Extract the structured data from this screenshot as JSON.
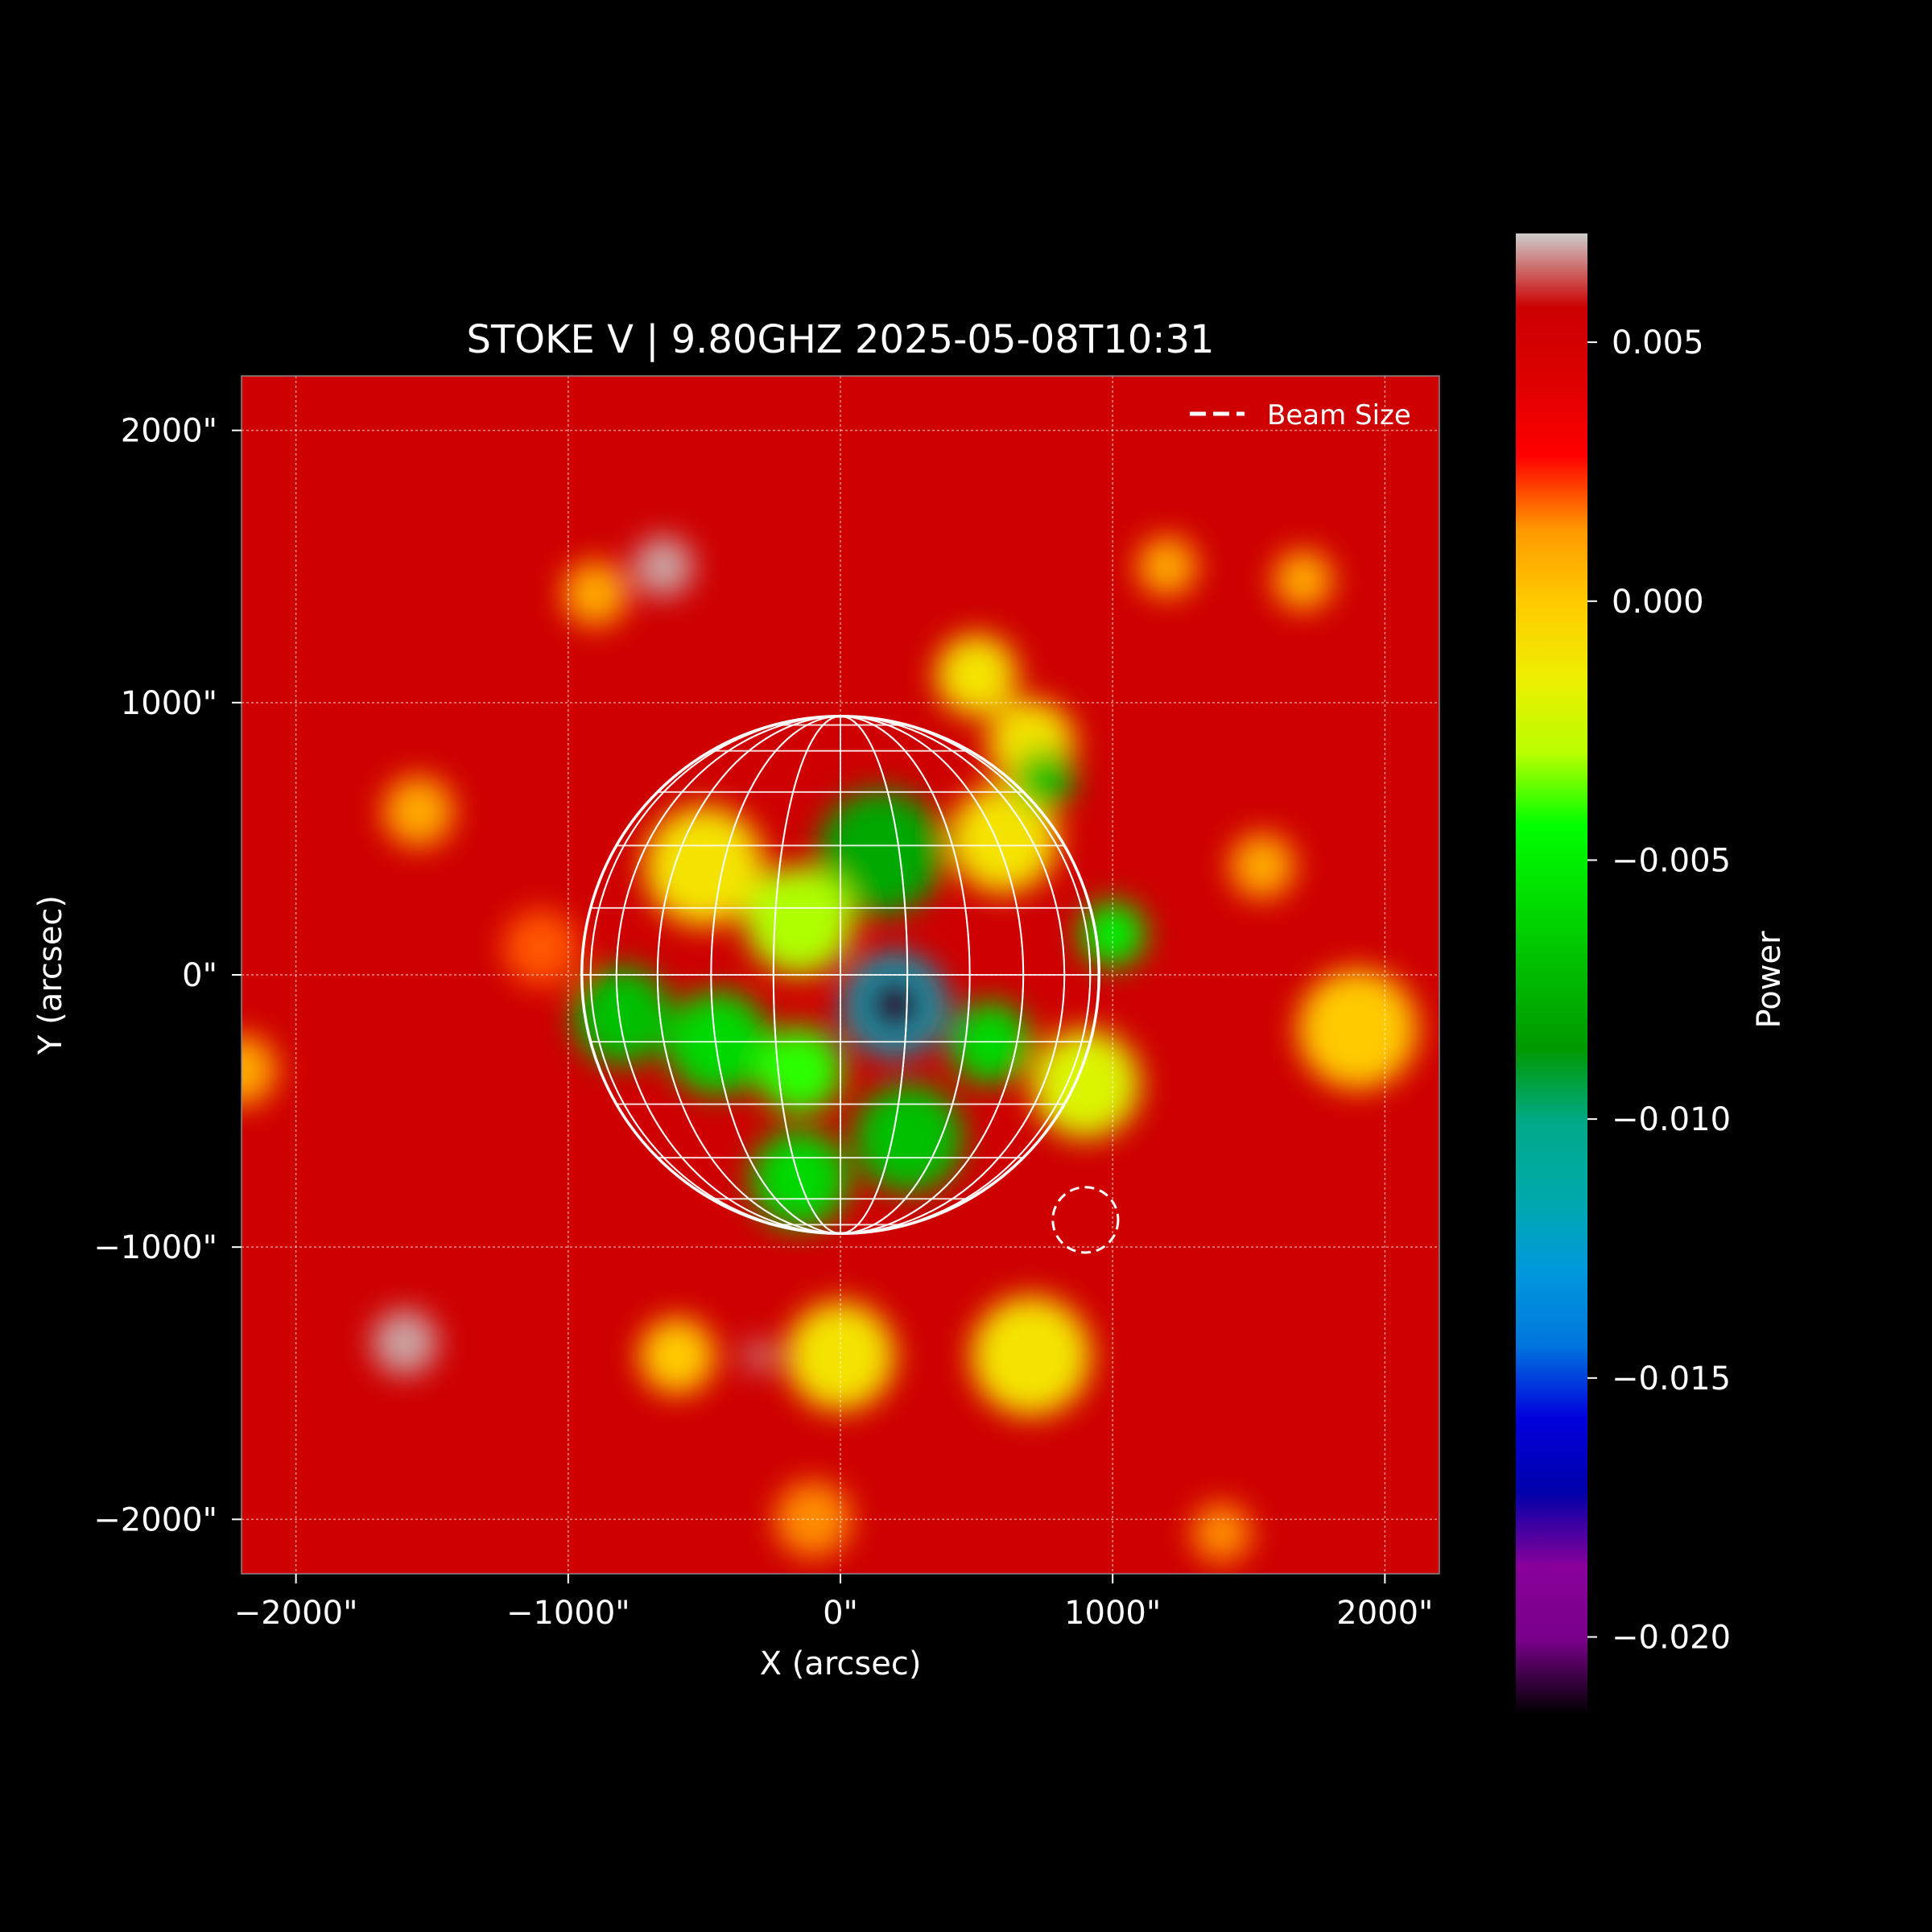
{
  "chart_data": {
    "type": "heatmap",
    "title": "STOKE V | 9.80GHZ 2025-05-08T10:31",
    "xlabel": "X (arcsec)",
    "ylabel": "Y (arcsec)",
    "xlim": [
      -2200,
      2200
    ],
    "ylim": [
      -2200,
      2200
    ],
    "x_ticks": [
      {
        "value": -2000,
        "label": "−2000\""
      },
      {
        "value": -1000,
        "label": "−1000\""
      },
      {
        "value": 0,
        "label": "0\""
      },
      {
        "value": 1000,
        "label": "1000\""
      },
      {
        "value": 2000,
        "label": "2000\""
      }
    ],
    "y_ticks": [
      {
        "value": 2000,
        "label": "2000\""
      },
      {
        "value": 1000,
        "label": "1000\""
      },
      {
        "value": 0,
        "label": "0\""
      },
      {
        "value": -1000,
        "label": "−1000\""
      },
      {
        "value": -2000,
        "label": "−2000\""
      }
    ],
    "grid": true,
    "legend": {
      "placement": "top-right",
      "entries": [
        {
          "label": "Beam Size",
          "style": "dashed",
          "color": "#ffffff"
        }
      ]
    },
    "solar_disk": {
      "center": [
        0,
        0
      ],
      "radius_arcsec": 950,
      "grid_spacing_deg": 15
    },
    "beam": {
      "center": [
        900,
        -900
      ],
      "radius_arcsec": 120
    },
    "colorbar": {
      "label": "Power",
      "range": [
        -0.0215,
        0.0071
      ],
      "ticks": [
        {
          "value": 0.005,
          "label": "0.005"
        },
        {
          "value": 0.0,
          "label": "0.000"
        },
        {
          "value": -0.005,
          "label": "−0.005"
        },
        {
          "value": -0.01,
          "label": "−0.010"
        },
        {
          "value": -0.015,
          "label": "−0.015"
        },
        {
          "value": -0.02,
          "label": "−0.020"
        }
      ],
      "colormap": "nipy_spectral"
    },
    "background_value": 0.0055,
    "features": [
      {
        "x": 200,
        "y": -110,
        "value": -0.021,
        "radius": 110
      },
      {
        "x": 200,
        "y": -110,
        "value": -0.012,
        "radius": 190
      },
      {
        "x": 150,
        "y": 450,
        "value": -0.008,
        "radius": 230
      },
      {
        "x": -800,
        "y": -150,
        "value": -0.007,
        "radius": 180
      },
      {
        "x": -450,
        "y": -250,
        "value": -0.006,
        "radius": 190
      },
      {
        "x": -150,
        "y": -350,
        "value": -0.004,
        "radius": 160
      },
      {
        "x": 550,
        "y": -250,
        "value": -0.006,
        "radius": 150
      },
      {
        "x": 250,
        "y": -600,
        "value": -0.007,
        "radius": 200
      },
      {
        "x": -150,
        "y": -750,
        "value": -0.006,
        "radius": 180
      },
      {
        "x": 750,
        "y": 720,
        "value": -0.007,
        "radius": 110
      },
      {
        "x": 1000,
        "y": 150,
        "value": -0.005,
        "radius": 120
      },
      {
        "x": -150,
        "y": 200,
        "value": -0.003,
        "radius": 200
      },
      {
        "x": -500,
        "y": 400,
        "value": -0.001,
        "radius": 220
      },
      {
        "x": 600,
        "y": 500,
        "value": -0.001,
        "radius": 200
      },
      {
        "x": 500,
        "y": 1100,
        "value": -0.001,
        "radius": 150
      },
      {
        "x": 700,
        "y": 850,
        "value": -0.001,
        "radius": 160
      },
      {
        "x": 900,
        "y": -400,
        "value": -0.002,
        "radius": 200
      },
      {
        "x": 700,
        "y": -1400,
        "value": -0.001,
        "radius": 220
      },
      {
        "x": 0,
        "y": -1400,
        "value": -0.001,
        "radius": 200
      },
      {
        "x": -600,
        "y": -1400,
        "value": 0.0,
        "radius": 140
      },
      {
        "x": 1900,
        "y": -200,
        "value": 0.0,
        "radius": 220
      },
      {
        "x": 1550,
        "y": 400,
        "value": 0.001,
        "radius": 120
      },
      {
        "x": 1700,
        "y": 1450,
        "value": 0.001,
        "radius": 110
      },
      {
        "x": 1200,
        "y": 1500,
        "value": 0.001,
        "radius": 110
      },
      {
        "x": -900,
        "y": 1400,
        "value": 0.001,
        "radius": 120
      },
      {
        "x": -1550,
        "y": 600,
        "value": 0.001,
        "radius": 130
      },
      {
        "x": -2200,
        "y": -350,
        "value": 0.001,
        "radius": 130
      },
      {
        "x": -1100,
        "y": 100,
        "value": 0.002,
        "radius": 140
      },
      {
        "x": -100,
        "y": -2000,
        "value": 0.0015,
        "radius": 140
      },
      {
        "x": 1400,
        "y": -2050,
        "value": 0.0015,
        "radius": 110
      },
      {
        "x": -650,
        "y": 1500,
        "value": 0.0068,
        "radius": 110
      },
      {
        "x": -1600,
        "y": -1350,
        "value": 0.0068,
        "radius": 120
      },
      {
        "x": -300,
        "y": -1400,
        "value": 0.0065,
        "radius": 60
      }
    ]
  }
}
